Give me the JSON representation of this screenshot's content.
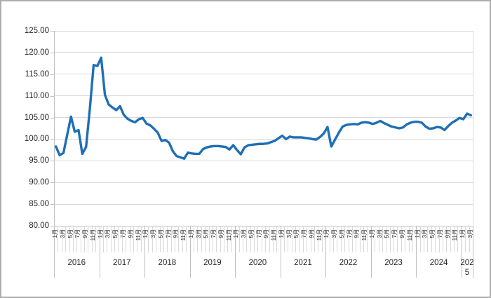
{
  "colors": {
    "line": "#1f6fb5",
    "gridline": "#d9d9d9",
    "axis": "#bfbfbf",
    "text": "#262626",
    "border": "#adadad",
    "background": "#ffffff"
  },
  "chart_data": {
    "type": "line",
    "grid": true,
    "legend": false,
    "y_axis": {
      "min": 80,
      "max": 125,
      "step": 5,
      "tick_labels": [
        "125.00",
        "120.00",
        "115.00",
        "110.00",
        "105.00",
        "100.00",
        "95.00",
        "90.00",
        "85.00",
        "80.00"
      ]
    },
    "x_axis": {
      "years": [
        {
          "label": "2016",
          "data_months": 12,
          "month_labels": [
            "1月",
            "3月",
            "5月",
            "7月",
            "9月",
            "11月"
          ]
        },
        {
          "label": "2017",
          "data_months": 12,
          "month_labels": [
            "1月",
            "3月",
            "5月",
            "7月",
            "9月",
            "11月"
          ]
        },
        {
          "label": "2018",
          "data_months": 12,
          "month_labels": [
            "1月",
            "3月",
            "5月",
            "7月",
            "9月",
            "11月"
          ]
        },
        {
          "label": "2019",
          "data_months": 12,
          "month_labels": [
            "1月",
            "3月",
            "5月",
            "7月",
            "9月",
            "11月"
          ]
        },
        {
          "label": "2020",
          "data_months": 12,
          "month_labels": [
            "1月",
            "3月",
            "5月",
            "7月",
            "9月",
            "11月"
          ]
        },
        {
          "label": "2021",
          "data_months": 12,
          "month_labels": [
            "1月",
            "3月",
            "5月",
            "7月",
            "9月",
            "11月"
          ]
        },
        {
          "label": "2022",
          "data_months": 12,
          "month_labels": [
            "1月",
            "3月",
            "5月",
            "7月",
            "9月",
            "11月"
          ]
        },
        {
          "label": "2023",
          "data_months": 12,
          "month_labels": [
            "1月",
            "3月",
            "5月",
            "7月",
            "9月",
            "11月"
          ]
        },
        {
          "label": "2024",
          "data_months": 12,
          "month_labels": [
            "1月",
            "3月",
            "5月",
            "7月",
            "9月",
            "11月"
          ]
        },
        {
          "label": "2025",
          "data_months": 3,
          "month_labels": [
            "1月",
            "3月"
          ]
        }
      ],
      "range": "2016-01 to 2025-03"
    },
    "series": [
      {
        "color": "#1f6fb5",
        "values": [
          98.3,
          96.3,
          96.8,
          101.0,
          105.2,
          101.7,
          102.1,
          96.6,
          98.2,
          107.0,
          117.1,
          116.9,
          118.8,
          110.2,
          108.0,
          107.3,
          106.7,
          107.6,
          105.6,
          104.7,
          104.2,
          103.9,
          104.6,
          104.9,
          103.6,
          103.2,
          102.4,
          101.5,
          99.6,
          99.8,
          99.2,
          97.2,
          96.1,
          95.8,
          95.5,
          96.9,
          96.7,
          96.6,
          96.6,
          97.7,
          98.1,
          98.3,
          98.4,
          98.4,
          98.3,
          98.2,
          97.6,
          98.6,
          97.5,
          96.5,
          98.1,
          98.6,
          98.7,
          98.8,
          98.9,
          98.9,
          99.0,
          99.3,
          99.6,
          100.2,
          100.8,
          100.0,
          100.6,
          100.4,
          100.4,
          100.4,
          100.3,
          100.2,
          100.0,
          99.9,
          100.5,
          101.3,
          102.8,
          98.3,
          99.9,
          101.5,
          102.9,
          103.3,
          103.4,
          103.5,
          103.4,
          103.8,
          103.9,
          103.8,
          103.5,
          103.8,
          104.2,
          103.7,
          103.3,
          102.9,
          102.7,
          102.5,
          102.7,
          103.4,
          103.8,
          104.0,
          104.0,
          103.8,
          102.9,
          102.4,
          102.5,
          102.8,
          102.7,
          102.1,
          103.0,
          103.8,
          104.3,
          104.9,
          104.6,
          105.9,
          105.5
        ]
      }
    ]
  }
}
